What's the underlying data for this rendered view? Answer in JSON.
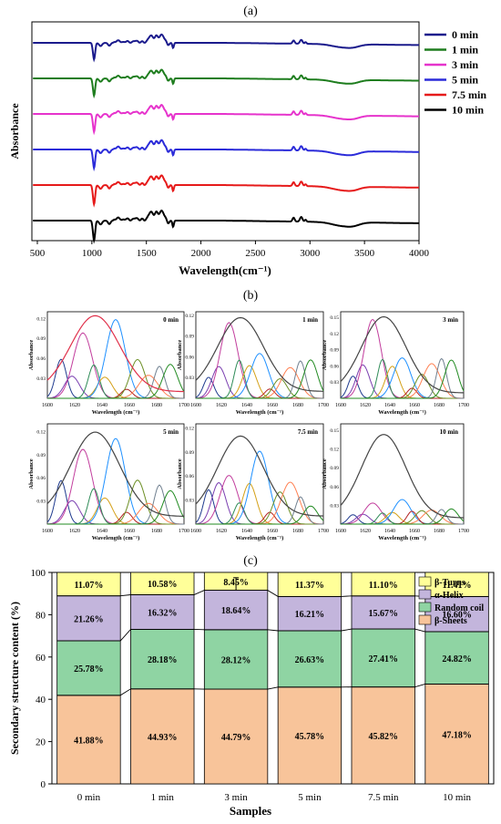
{
  "panel_labels": {
    "a": "(a)",
    "b": "(b)",
    "c": "(c)"
  },
  "chart_data": [
    {
      "type": "line",
      "panel": "(a)",
      "xlabel": "Wavelength(cm⁻¹)",
      "ylabel": "Absorbance",
      "xlim": [
        450,
        4000
      ],
      "xticks": [
        500,
        1000,
        1500,
        2000,
        2500,
        3000,
        3500,
        4000
      ],
      "legend_position": "right",
      "series": [
        {
          "name": "0 min",
          "color": "#1a1a8c"
        },
        {
          "name": "1 min",
          "color": "#1e7d1e"
        },
        {
          "name": "3 min",
          "color": "#e633cc"
        },
        {
          "name": "5 min",
          "color": "#2b2bd9"
        },
        {
          "name": "7.5 min",
          "color": "#e61a1a"
        },
        {
          "name": "10 min",
          "color": "#000000"
        }
      ]
    },
    {
      "type": "area",
      "panel": "(b)",
      "xlabel": "Wavelength (cm⁻¹)",
      "ylabel": "Absorbance",
      "xlim": [
        1600,
        1700
      ],
      "xticks": [
        1600,
        1620,
        1640,
        1660,
        1680,
        1700
      ],
      "subplots": [
        {
          "title": "0 min",
          "ylim": [
            0,
            0.13
          ],
          "yticks": [
            0.03,
            0.06,
            0.09,
            0.12
          ],
          "peak": 0.12
        },
        {
          "title": "1 min",
          "ylim": [
            0,
            0.125
          ],
          "yticks": [
            0.03,
            0.06,
            0.09,
            0.12
          ],
          "peak": 0.112
        },
        {
          "title": "3 min",
          "ylim": [
            0,
            0.16
          ],
          "yticks": [
            0.03,
            0.06,
            0.09,
            0.12,
            0.15
          ],
          "peak": 0.148
        },
        {
          "title": "5 min",
          "ylim": [
            0,
            0.13
          ],
          "yticks": [
            0.03,
            0.06,
            0.09,
            0.12
          ],
          "peak": 0.115
        },
        {
          "title": "7.5 min",
          "ylim": [
            0,
            0.125
          ],
          "yticks": [
            0.03,
            0.06,
            0.09,
            0.12
          ],
          "peak": 0.105
        },
        {
          "title": "10 min",
          "ylim": [
            0,
            0.16
          ],
          "yticks": [
            0.03,
            0.06,
            0.09,
            0.12,
            0.15
          ],
          "peak": 0.14
        }
      ]
    },
    {
      "type": "bar",
      "panel": "(c)",
      "stacked": true,
      "xlabel": "Samples",
      "ylabel": "Secondary structure content (%)",
      "ylim": [
        0,
        100
      ],
      "yticks": [
        0,
        20,
        40,
        60,
        80,
        100
      ],
      "legend_position": "top-right",
      "categories": [
        "0 min",
        "1 min",
        "3 min",
        "5 min",
        "7.5 min",
        "10 min"
      ],
      "series": [
        {
          "name": "β-Sheets",
          "color": "#f8c49a",
          "values": [
            41.88,
            44.93,
            44.79,
            45.78,
            45.82,
            47.18
          ],
          "labels": [
            "41.88%",
            "44.93%",
            "44.79%",
            "45.78%",
            "45.82%",
            "47.18%"
          ]
        },
        {
          "name": "Random coil",
          "color": "#8fd4a3",
          "values": [
            25.78,
            28.18,
            28.12,
            26.63,
            27.41,
            24.82
          ],
          "labels": [
            "25.78%",
            "28.18%",
            "28.12%",
            "26.63%",
            "27.41%",
            "24.82%"
          ]
        },
        {
          "name": "α-Helix",
          "color": "#c3b5dc",
          "values": [
            21.26,
            16.32,
            18.64,
            16.21,
            15.67,
            16.6
          ],
          "labels": [
            "21.26%",
            "16.32%",
            "18.64%",
            "16.21%",
            "15.67%",
            "16.60%"
          ]
        },
        {
          "name": "β-Turns",
          "color": "#ffff99",
          "values": [
            11.07,
            10.58,
            8.45,
            11.37,
            11.1,
            11.41
          ],
          "labels": [
            "11.07%",
            "10.58%",
            "8.45%",
            "11.37%",
            "11.10%",
            "11.41%"
          ]
        }
      ],
      "legend_order": [
        "β-Turns",
        "α-Helix",
        "Random coil",
        "β-Sheets"
      ]
    }
  ]
}
